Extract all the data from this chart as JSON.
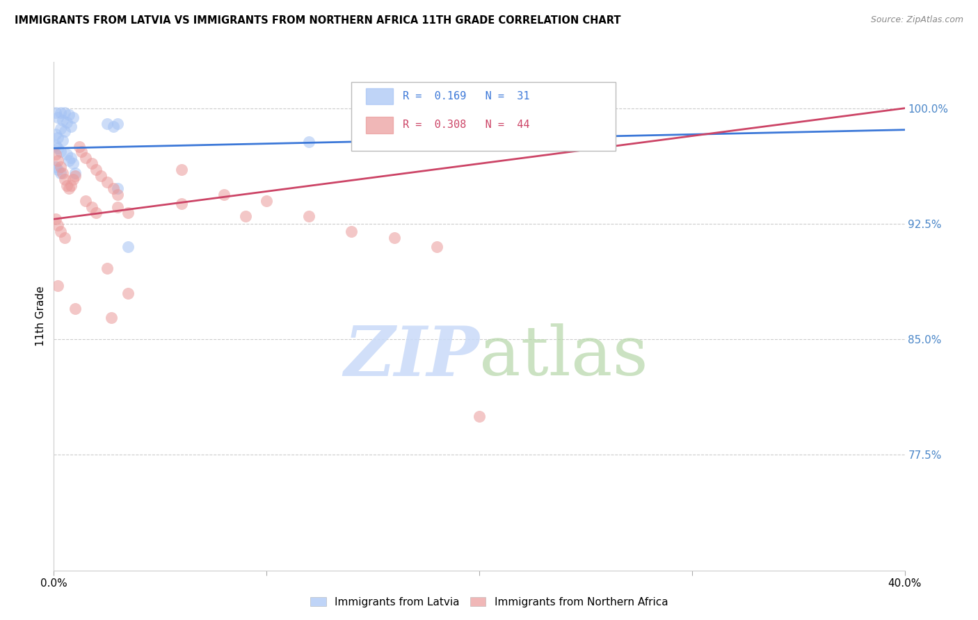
{
  "title": "IMMIGRANTS FROM LATVIA VS IMMIGRANTS FROM NORTHERN AFRICA 11TH GRADE CORRELATION CHART",
  "source": "Source: ZipAtlas.com",
  "ylabel": "11th Grade",
  "yticks_pct": [
    77.5,
    85.0,
    92.5,
    100.0
  ],
  "ytick_labels": [
    "77.5%",
    "85.0%",
    "92.5%",
    "100.0%"
  ],
  "xlim": [
    0.0,
    0.4
  ],
  "ylim": [
    0.7,
    1.03
  ],
  "blue_color": "#a4c2f4",
  "pink_color": "#ea9999",
  "blue_line_color": "#3c78d8",
  "pink_line_color": "#cc4466",
  "ytick_color": "#4a86c8",
  "grid_color": "#cccccc",
  "blue_scatter": [
    [
      0.001,
      0.997
    ],
    [
      0.003,
      0.997
    ],
    [
      0.005,
      0.997
    ],
    [
      0.007,
      0.996
    ],
    [
      0.009,
      0.994
    ],
    [
      0.002,
      0.994
    ],
    [
      0.004,
      0.992
    ],
    [
      0.006,
      0.991
    ],
    [
      0.008,
      0.988
    ],
    [
      0.003,
      0.987
    ],
    [
      0.005,
      0.985
    ],
    [
      0.001,
      0.983
    ],
    [
      0.002,
      0.981
    ],
    [
      0.004,
      0.979
    ],
    [
      0.001,
      0.976
    ],
    [
      0.002,
      0.974
    ],
    [
      0.003,
      0.972
    ],
    [
      0.006,
      0.97
    ],
    [
      0.008,
      0.968
    ],
    [
      0.007,
      0.966
    ],
    [
      0.009,
      0.964
    ],
    [
      0.001,
      0.962
    ],
    [
      0.002,
      0.96
    ],
    [
      0.003,
      0.958
    ],
    [
      0.025,
      0.99
    ],
    [
      0.028,
      0.988
    ],
    [
      0.03,
      0.99
    ],
    [
      0.12,
      0.978
    ],
    [
      0.01,
      0.958
    ],
    [
      0.03,
      0.948
    ],
    [
      0.035,
      0.91
    ]
  ],
  "pink_scatter": [
    [
      0.001,
      0.97
    ],
    [
      0.002,
      0.966
    ],
    [
      0.003,
      0.962
    ],
    [
      0.004,
      0.958
    ],
    [
      0.005,
      0.954
    ],
    [
      0.006,
      0.95
    ],
    [
      0.007,
      0.948
    ],
    [
      0.008,
      0.95
    ],
    [
      0.009,
      0.954
    ],
    [
      0.01,
      0.956
    ],
    [
      0.012,
      0.975
    ],
    [
      0.013,
      0.972
    ],
    [
      0.015,
      0.968
    ],
    [
      0.018,
      0.964
    ],
    [
      0.02,
      0.96
    ],
    [
      0.022,
      0.956
    ],
    [
      0.025,
      0.952
    ],
    [
      0.028,
      0.948
    ],
    [
      0.03,
      0.944
    ],
    [
      0.015,
      0.94
    ],
    [
      0.018,
      0.936
    ],
    [
      0.02,
      0.932
    ],
    [
      0.03,
      0.936
    ],
    [
      0.035,
      0.932
    ],
    [
      0.06,
      0.96
    ],
    [
      0.06,
      0.938
    ],
    [
      0.08,
      0.944
    ],
    [
      0.09,
      0.93
    ],
    [
      0.1,
      0.94
    ],
    [
      0.12,
      0.93
    ],
    [
      0.14,
      0.92
    ],
    [
      0.16,
      0.916
    ],
    [
      0.18,
      0.91
    ],
    [
      0.001,
      0.928
    ],
    [
      0.002,
      0.924
    ],
    [
      0.003,
      0.92
    ],
    [
      0.005,
      0.916
    ],
    [
      0.025,
      0.896
    ],
    [
      0.027,
      0.864
    ],
    [
      0.035,
      0.88
    ],
    [
      0.002,
      0.885
    ],
    [
      0.01,
      0.87
    ],
    [
      0.2,
      0.8
    ]
  ],
  "blue_trendline_x": [
    0.0,
    0.4
  ],
  "blue_trendline_y": [
    0.974,
    0.986
  ],
  "pink_trendline_x": [
    0.0,
    0.4
  ],
  "pink_trendline_y": [
    0.928,
    1.0
  ]
}
